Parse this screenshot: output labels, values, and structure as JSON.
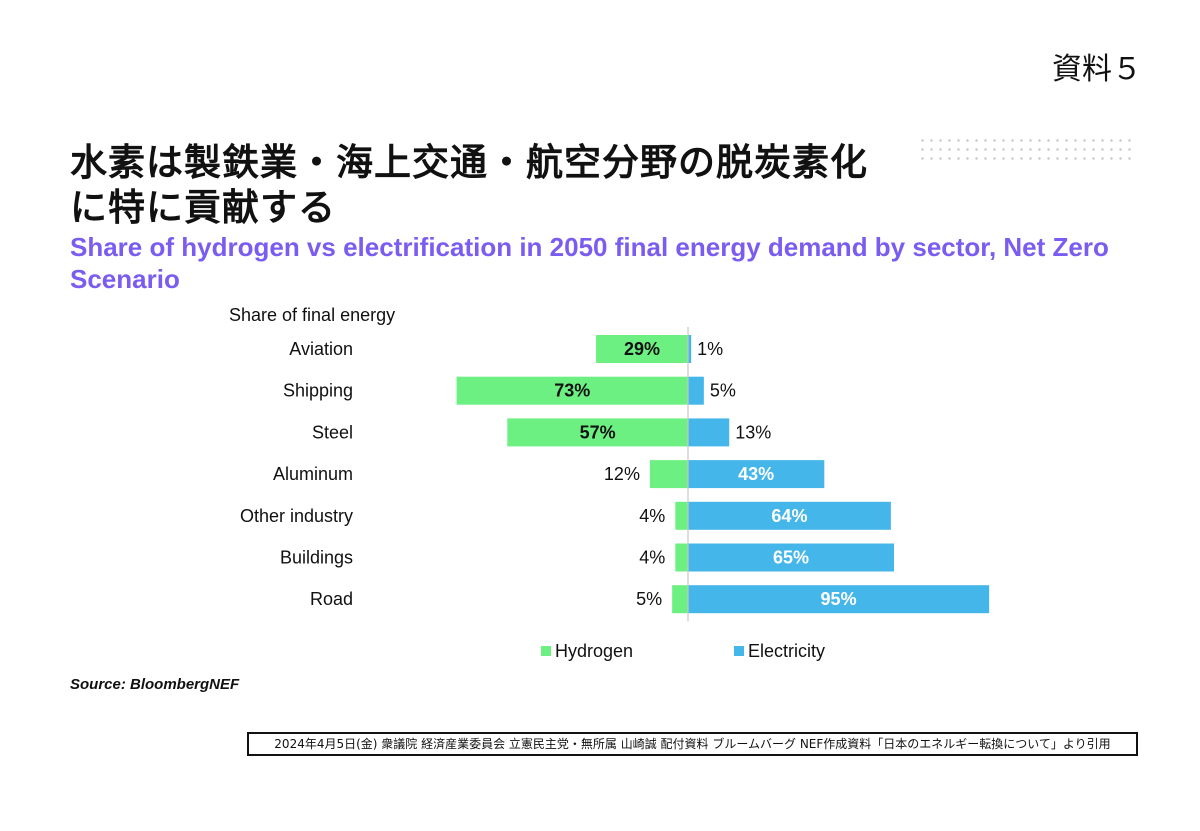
{
  "document": {
    "label": "資料５",
    "title": "水素は製鉄業・海上交通・航空分野の脱炭素化\nに特に貢献する",
    "footnote": "2024年4月5日(金) 衆議院 経済産業委員会 立憲民主党・無所属 山崎誠 配付資料 ブルームバーグ NEF作成資料「日本のエネルギー転換について」より引用"
  },
  "colors": {
    "hydrogen": "#6cf082",
    "electricity": "#45b6ea",
    "subtitle": "#7b5cf0"
  },
  "chart_data": {
    "type": "bar",
    "orientation": "horizontal-diverging",
    "title": "Share of hydrogen vs electrification in 2050 final energy demand by sector, Net Zero Scenario",
    "ylabel": "Share of final energy",
    "categories": [
      "Aviation",
      "Shipping",
      "Steel",
      "Aluminum",
      "Other industry",
      "Buildings",
      "Road"
    ],
    "series": [
      {
        "name": "Hydrogen",
        "values": [
          29,
          73,
          57,
          12,
          4,
          4,
          5
        ],
        "labels": [
          "29%",
          "73%",
          "57%",
          "12%",
          "4%",
          "4%",
          "5%"
        ]
      },
      {
        "name": "Electricity",
        "values": [
          1,
          5,
          13,
          43,
          64,
          65,
          95
        ],
        "labels": [
          "1%",
          "5%",
          "13%",
          "43%",
          "64%",
          "65%",
          "95%"
        ]
      }
    ],
    "legend_position": "bottom",
    "grid": false,
    "source": "Source: BloombergNEF"
  }
}
